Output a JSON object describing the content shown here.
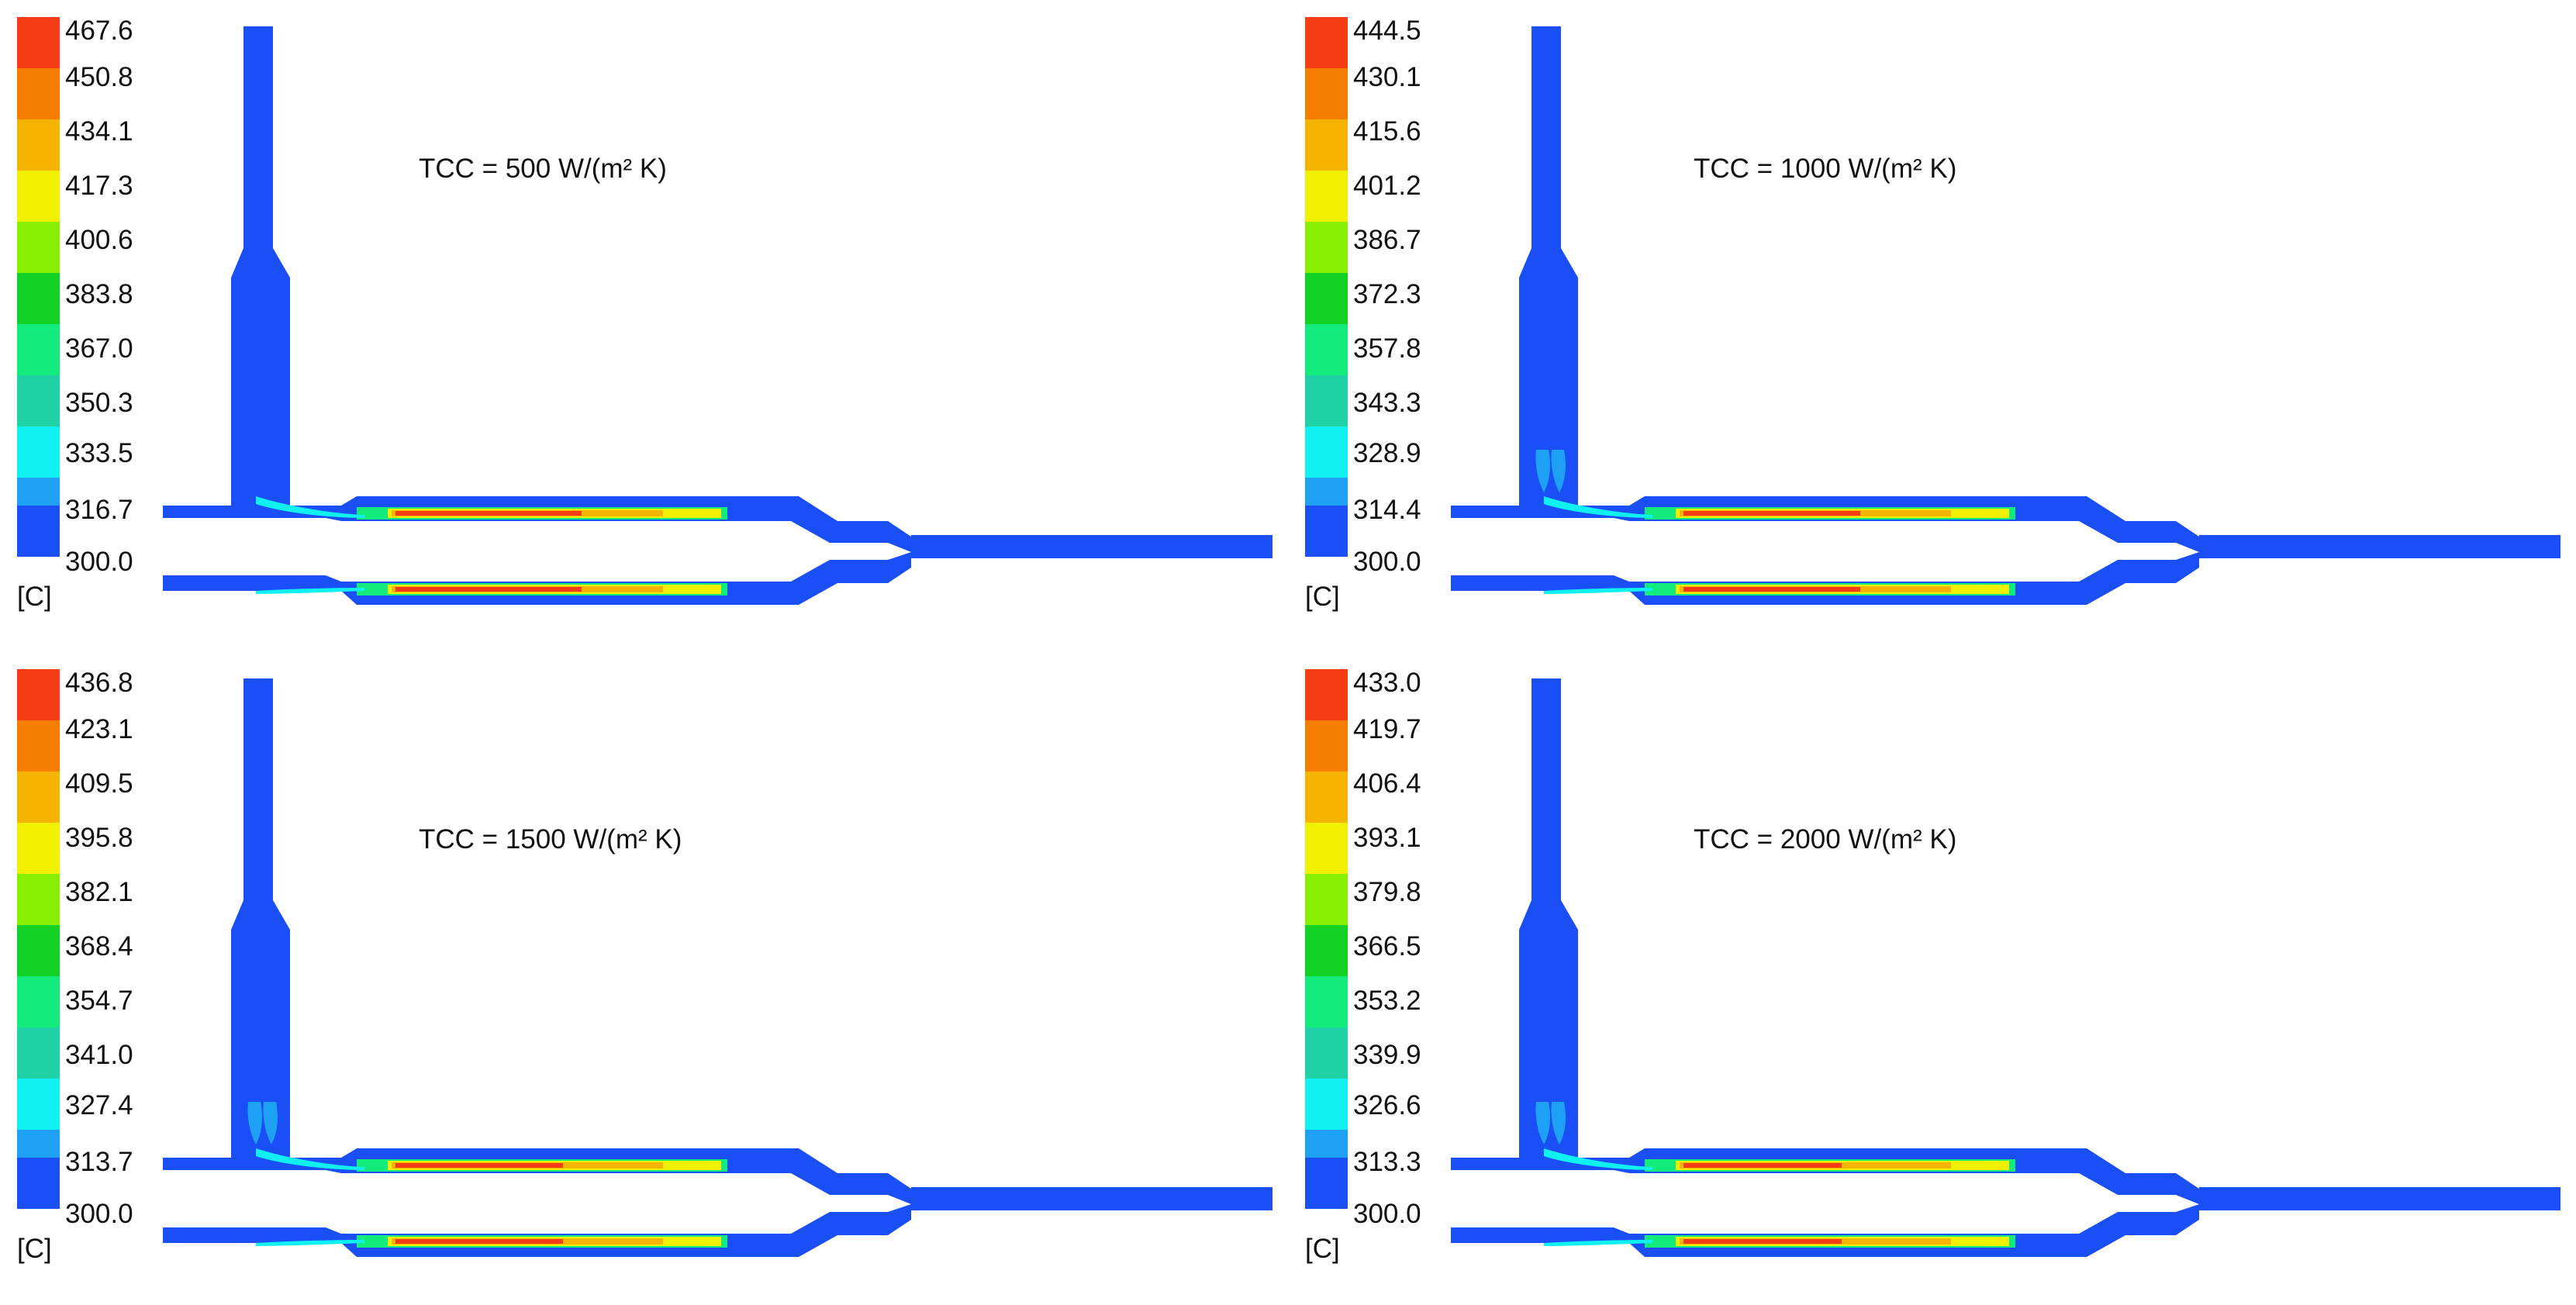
{
  "colors": {
    "geometry": "#1a4ff5",
    "scale": [
      "#1a4ff5",
      "#1ea0f5",
      "#10f0f0",
      "#1ed2a5",
      "#14eb7d",
      "#14d225",
      "#88f000",
      "#f0f000",
      "#f5b400",
      "#f57d00",
      "#f53c14"
    ]
  },
  "panels": [
    {
      "caption": "TCC = 500 W/(m² K)",
      "unit": "[C]",
      "ticks": [
        "467.6",
        "450.8",
        "434.1",
        "417.3",
        "400.6",
        "383.8",
        "367.0",
        "350.3",
        "333.5",
        "316.7",
        "300.0"
      ],
      "hot_level": 1.0,
      "vertical_plume": false
    },
    {
      "caption": "TCC = 1000 W/(m² K)",
      "unit": "[C]",
      "ticks": [
        "444.5",
        "430.1",
        "415.6",
        "401.2",
        "386.7",
        "372.3",
        "357.8",
        "343.3",
        "328.9",
        "314.4",
        "300.0"
      ],
      "hot_level": 0.95,
      "vertical_plume": true
    },
    {
      "caption": "TCC = 1500 W/(m² K)",
      "unit": "[C]",
      "ticks": [
        "436.8",
        "423.1",
        "409.5",
        "395.8",
        "382.1",
        "368.4",
        "354.7",
        "341.0",
        "327.4",
        "313.7",
        "300.0"
      ],
      "hot_level": 0.9,
      "vertical_plume": true
    },
    {
      "caption": "TCC = 2000 W/(m² K)",
      "unit": "[C]",
      "ticks": [
        "433.0",
        "419.7",
        "406.4",
        "393.1",
        "379.8",
        "366.5",
        "353.2",
        "339.9",
        "326.6",
        "313.3",
        "300.0"
      ],
      "hot_level": 0.85,
      "vertical_plume": true
    }
  ]
}
